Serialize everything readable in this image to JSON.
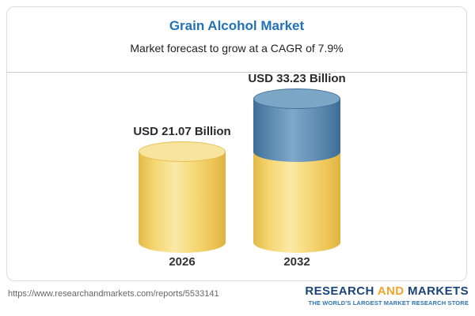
{
  "header": {
    "title": "Grain Alcohol Market",
    "subtitle": "Market forecast to grow at a CAGR of 7.9%"
  },
  "chart_data": {
    "type": "bar",
    "bar_style": "3d-cylinder",
    "title": "Grain Alcohol Market",
    "subtitle": "Market forecast to grow at a CAGR of 7.9%",
    "categories": [
      "2026",
      "2032"
    ],
    "values": [
      21.07,
      33.23
    ],
    "value_labels": [
      "USD 21.07 Billion",
      "USD 33.23 Billion"
    ],
    "unit": "USD Billion",
    "cagr_percent": 7.9,
    "ylim": [
      0,
      33.23
    ],
    "legend": "none",
    "colors": {
      "base_bar": "#f3d26a",
      "growth_segment": "#5585ad",
      "title_text": "#2273b5"
    },
    "growth_segment": {
      "bar": "2032",
      "from": 21.07,
      "to": 33.23
    }
  },
  "footer": {
    "url": "https://www.researchandmarkets.com/reports/5533141",
    "logo": {
      "word1": "RESEARCH",
      "word2": "AND",
      "word3": "MARKETS",
      "tagline": "THE WORLD'S LARGEST MARKET RESEARCH STORE"
    }
  }
}
